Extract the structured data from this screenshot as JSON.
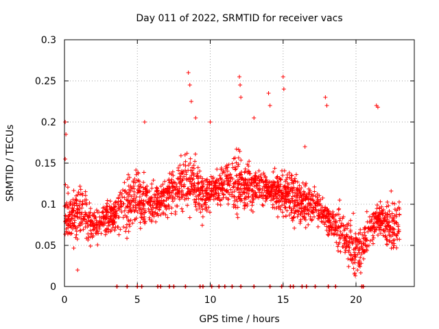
{
  "chart_data": {
    "type": "scatter",
    "title": "Day 011 of 2022, SRMTID for receiver vacs",
    "xlabel": "GPS time / hours",
    "ylabel": "SRMTID / TECUs",
    "xlim": [
      0,
      24
    ],
    "ylim": [
      0,
      0.3
    ],
    "xticks": [
      0,
      5,
      10,
      15,
      20
    ],
    "xtick_labels": [
      "0",
      "5",
      "10",
      "15",
      "20"
    ],
    "yticks": [
      0,
      0.05,
      0.1,
      0.15,
      0.2,
      0.25,
      0.3
    ],
    "ytick_labels": [
      "0",
      "0.05",
      "0.1",
      "0.15",
      "0.2",
      "0.25",
      "0.3"
    ],
    "grid": true,
    "marker": "+",
    "series_color": "#ff0000",
    "grid_color": "#a0a0a0",
    "series": [
      {
        "name": "SRMTID",
        "trend": [
          [
            0.0,
            0.09
          ],
          [
            0.5,
            0.085
          ],
          [
            1.0,
            0.09
          ],
          [
            1.5,
            0.085
          ],
          [
            2.0,
            0.075
          ],
          [
            2.5,
            0.08
          ],
          [
            3.0,
            0.085
          ],
          [
            3.5,
            0.09
          ],
          [
            4.0,
            0.095
          ],
          [
            4.5,
            0.105
          ],
          [
            5.0,
            0.11
          ],
          [
            5.5,
            0.105
          ],
          [
            6.0,
            0.1
          ],
          [
            6.5,
            0.105
          ],
          [
            7.0,
            0.11
          ],
          [
            7.5,
            0.115
          ],
          [
            8.0,
            0.12
          ],
          [
            8.5,
            0.125
          ],
          [
            9.0,
            0.12
          ],
          [
            9.5,
            0.11
          ],
          [
            10.0,
            0.115
          ],
          [
            10.5,
            0.12
          ],
          [
            11.0,
            0.125
          ],
          [
            11.5,
            0.125
          ],
          [
            12.0,
            0.125
          ],
          [
            12.5,
            0.12
          ],
          [
            13.0,
            0.12
          ],
          [
            13.5,
            0.12
          ],
          [
            14.0,
            0.12
          ],
          [
            14.5,
            0.115
          ],
          [
            15.0,
            0.115
          ],
          [
            15.5,
            0.11
          ],
          [
            16.0,
            0.105
          ],
          [
            16.5,
            0.1
          ],
          [
            17.0,
            0.1
          ],
          [
            17.5,
            0.095
          ],
          [
            18.0,
            0.085
          ],
          [
            18.5,
            0.075
          ],
          [
            19.0,
            0.065
          ],
          [
            19.5,
            0.05
          ],
          [
            20.0,
            0.045
          ],
          [
            20.5,
            0.05
          ],
          [
            21.0,
            0.07
          ],
          [
            21.5,
            0.085
          ],
          [
            22.0,
            0.075
          ],
          [
            22.5,
            0.075
          ],
          [
            23.0,
            0.08
          ]
        ],
        "spikes": [
          [
            0.05,
            0.2
          ],
          [
            0.1,
            0.185
          ],
          [
            0.05,
            0.155
          ],
          [
            8.5,
            0.26
          ],
          [
            8.6,
            0.245
          ],
          [
            8.7,
            0.225
          ],
          [
            9.0,
            0.205
          ],
          [
            10.0,
            0.2
          ],
          [
            12.0,
            0.255
          ],
          [
            12.05,
            0.245
          ],
          [
            12.1,
            0.23
          ],
          [
            14.0,
            0.235
          ],
          [
            14.1,
            0.22
          ],
          [
            15.0,
            0.255
          ],
          [
            15.05,
            0.24
          ],
          [
            17.9,
            0.23
          ],
          [
            18.0,
            0.22
          ],
          [
            21.4,
            0.22
          ],
          [
            21.5,
            0.218
          ],
          [
            13.0,
            0.205
          ],
          [
            5.5,
            0.2
          ],
          [
            16.5,
            0.17
          ],
          [
            20.1,
            0.02
          ],
          [
            19.9,
            0.015
          ],
          [
            0.9,
            0.02
          ]
        ],
        "zero_markers": [
          3.6,
          4.3,
          5.0,
          5.3,
          6.4,
          6.6,
          7.2,
          7.5,
          8.3,
          9.3,
          9.5,
          10.1,
          10.6,
          11.0,
          11.5,
          12.1,
          13.0,
          14.1,
          14.9,
          15.5,
          15.7,
          16.3,
          16.6,
          17.2,
          18.1,
          18.6,
          20.4,
          20.5
        ]
      }
    ]
  }
}
